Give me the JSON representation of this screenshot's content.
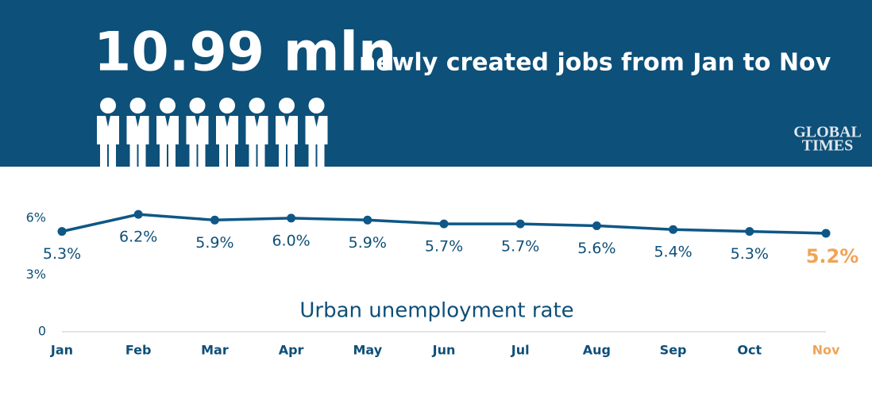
{
  "header": {
    "headline_number": "10.99 mln",
    "headline_text": "newly created jobs from Jan to Nov",
    "logo": [
      "GLOBAL",
      "TIMES"
    ]
  },
  "chart_data": {
    "type": "line",
    "title": "Urban unemployment rate",
    "categories": [
      "Jan",
      "Feb",
      "Mar",
      "Apr",
      "May",
      "Jun",
      "Jul",
      "Aug",
      "Sep",
      "Oct",
      "Nov"
    ],
    "series": [
      {
        "name": "Urban unemployment rate",
        "color": "#0e5786",
        "values": [
          5.3,
          6.2,
          5.9,
          6.0,
          5.9,
          5.7,
          5.7,
          5.6,
          5.4,
          5.3,
          5.2
        ],
        "value_labels": [
          "5.3%",
          "6.2%",
          "5.9%",
          "6.0%",
          "5.9%",
          "5.7%",
          "5.7%",
          "5.6%",
          "5.4%",
          "5.3%",
          "5.2%"
        ]
      }
    ],
    "highlight_color": "#f0a457",
    "ylim": [
      0,
      6.5
    ],
    "yticks": [
      0,
      {
        "value": 3,
        "label": "3%"
      },
      {
        "value": 6,
        "label": "6%"
      }
    ]
  }
}
